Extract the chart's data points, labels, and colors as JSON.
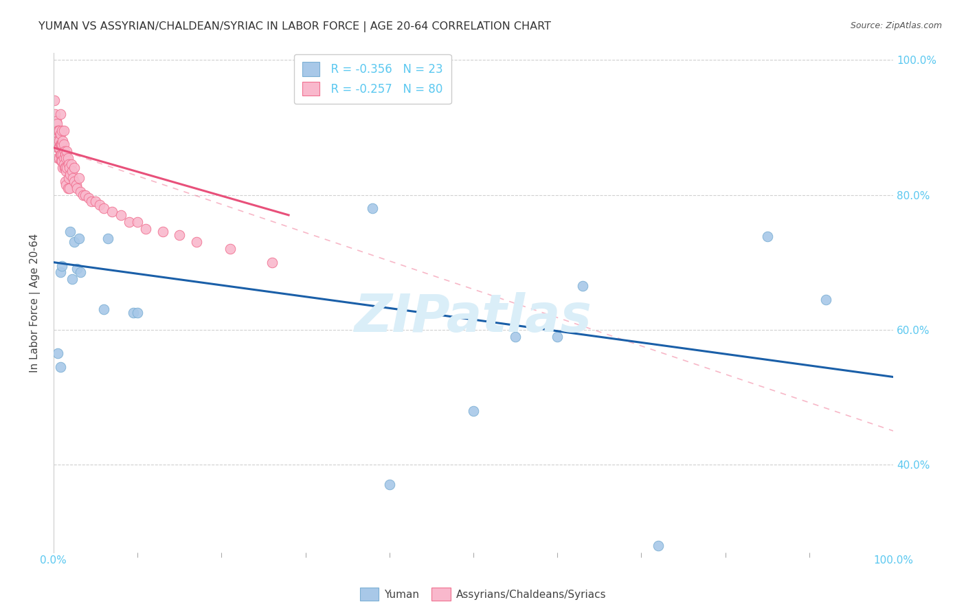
{
  "title": "YUMAN VS ASSYRIAN/CHALDEAN/SYRIAC IN LABOR FORCE | AGE 20-64 CORRELATION CHART",
  "source": "Source: ZipAtlas.com",
  "ylabel": "In Labor Force | Age 20-64",
  "legend_blue_R": "R = -0.356",
  "legend_blue_N": "N = 23",
  "legend_pink_R": "R = -0.257",
  "legend_pink_N": "N = 80",
  "legend_label_blue": "Yuman",
  "legend_label_pink": "Assyrians/Chaldeans/Syriacs",
  "blue_scatter_color": "#a8c8e8",
  "blue_edge_color": "#7bafd4",
  "pink_scatter_color": "#f9b8cc",
  "pink_edge_color": "#f07090",
  "blue_line_color": "#1a5fa8",
  "pink_line_color": "#e8507a",
  "dashed_line_color": "#c8c8c8",
  "watermark": "ZIPatlas",
  "watermark_color": "#daeef8",
  "watermark_fontsize": 55,
  "blue_scatter_x": [
    0.005,
    0.008,
    0.008,
    0.01,
    0.02,
    0.022,
    0.025,
    0.028,
    0.03,
    0.032,
    0.06,
    0.065,
    0.095,
    0.1,
    0.38,
    0.4,
    0.5,
    0.55,
    0.6,
    0.63,
    0.72,
    0.85,
    0.92
  ],
  "blue_scatter_y": [
    0.565,
    0.545,
    0.685,
    0.695,
    0.745,
    0.675,
    0.73,
    0.69,
    0.735,
    0.685,
    0.63,
    0.735,
    0.625,
    0.625,
    0.78,
    0.37,
    0.48,
    0.59,
    0.59,
    0.665,
    0.28,
    0.738,
    0.645
  ],
  "pink_scatter_x": [
    0.001,
    0.002,
    0.002,
    0.003,
    0.003,
    0.003,
    0.004,
    0.004,
    0.004,
    0.005,
    0.005,
    0.005,
    0.005,
    0.006,
    0.006,
    0.006,
    0.007,
    0.007,
    0.007,
    0.007,
    0.008,
    0.008,
    0.008,
    0.008,
    0.009,
    0.009,
    0.009,
    0.01,
    0.01,
    0.01,
    0.011,
    0.011,
    0.011,
    0.012,
    0.012,
    0.012,
    0.012,
    0.013,
    0.013,
    0.014,
    0.014,
    0.014,
    0.015,
    0.015,
    0.015,
    0.016,
    0.016,
    0.017,
    0.017,
    0.018,
    0.018,
    0.019,
    0.019,
    0.02,
    0.021,
    0.022,
    0.023,
    0.025,
    0.025,
    0.027,
    0.028,
    0.03,
    0.032,
    0.035,
    0.038,
    0.042,
    0.045,
    0.05,
    0.055,
    0.06,
    0.07,
    0.08,
    0.09,
    0.1,
    0.11,
    0.13,
    0.15,
    0.17,
    0.21,
    0.26
  ],
  "pink_scatter_y": [
    0.94,
    0.92,
    0.89,
    0.885,
    0.91,
    0.875,
    0.875,
    0.905,
    0.88,
    0.87,
    0.895,
    0.88,
    0.855,
    0.895,
    0.875,
    0.87,
    0.895,
    0.88,
    0.87,
    0.855,
    0.875,
    0.89,
    0.92,
    0.86,
    0.875,
    0.86,
    0.85,
    0.895,
    0.875,
    0.85,
    0.86,
    0.88,
    0.84,
    0.855,
    0.875,
    0.895,
    0.845,
    0.865,
    0.84,
    0.86,
    0.84,
    0.82,
    0.855,
    0.835,
    0.815,
    0.865,
    0.84,
    0.855,
    0.81,
    0.845,
    0.825,
    0.84,
    0.81,
    0.83,
    0.845,
    0.835,
    0.825,
    0.82,
    0.84,
    0.815,
    0.81,
    0.825,
    0.805,
    0.8,
    0.8,
    0.795,
    0.79,
    0.79,
    0.785,
    0.78,
    0.775,
    0.77,
    0.76,
    0.76,
    0.75,
    0.745,
    0.74,
    0.73,
    0.72,
    0.7
  ],
  "xlim": [
    0.0,
    1.0
  ],
  "ylim": [
    0.27,
    1.01
  ],
  "yticks": [
    0.4,
    0.6,
    0.8,
    1.0
  ],
  "ytick_labels": [
    "40.0%",
    "60.0%",
    "80.0%",
    "100.0%"
  ],
  "xticks_major": [
    0.0,
    1.0
  ],
  "xtick_labels": [
    "0.0%",
    "100.0%"
  ],
  "xticks_minor": [
    0.1,
    0.2,
    0.3,
    0.4,
    0.5,
    0.6,
    0.7,
    0.8,
    0.9
  ],
  "blue_trend_x": [
    0.0,
    1.0
  ],
  "blue_trend_y": [
    0.7,
    0.53
  ],
  "pink_trend_x": [
    0.0,
    0.28
  ],
  "pink_trend_y": [
    0.87,
    0.77
  ],
  "dashed_trend_x": [
    0.0,
    1.0
  ],
  "dashed_trend_y": [
    0.87,
    0.45
  ],
  "grid_color": "#d0d0d0",
  "background_color": "#ffffff",
  "title_fontsize": 11.5,
  "axis_tick_color": "#5bc8f0",
  "legend_edge_color": "#cccccc",
  "left_spine_color": "#cccccc"
}
